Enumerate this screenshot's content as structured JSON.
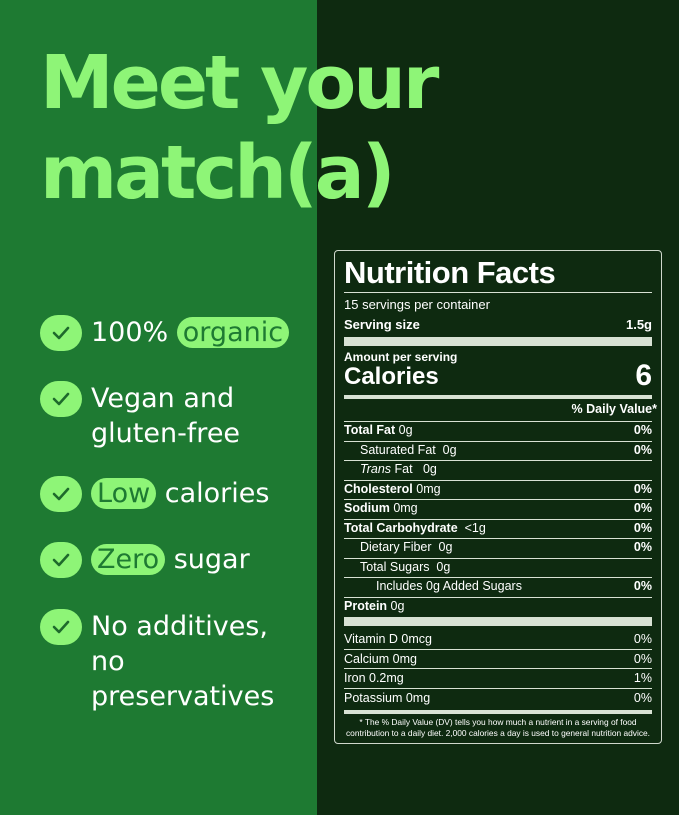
{
  "headline": {
    "line1": "Meet your",
    "line2": "match(a)"
  },
  "colors": {
    "left_bg": "#1e7a32",
    "right_bg": "#0e2a10",
    "accent": "#8ef577"
  },
  "features": [
    {
      "before": "100% ",
      "pill": "organic",
      "after": ""
    },
    {
      "before": "Vegan and gluten-free",
      "pill": "",
      "after": ""
    },
    {
      "before": "",
      "pill": "Low",
      "after": " calories"
    },
    {
      "before": "",
      "pill": "Zero",
      "after": " sugar"
    },
    {
      "before": "No additives, no preservatives",
      "pill": "",
      "after": ""
    }
  ],
  "nutrition": {
    "title": "Nutrition Facts",
    "servings": "15 servings per container",
    "serving_size_label": "Serving size",
    "serving_size_value": "1.5g",
    "amount_per_serving": "Amount per serving",
    "calories_label": "Calories",
    "calories_value": "6",
    "dv_header": "% Daily Value*",
    "rows": [
      {
        "bold": "Total Fat",
        "text": " 0g",
        "dv": "0%",
        "indent": 0,
        "dvbold": true
      },
      {
        "bold": "",
        "text": "Saturated Fat  0g",
        "dv": "0%",
        "indent": 1,
        "dvbold": true
      },
      {
        "bold": "",
        "italic": "Trans",
        "text": " Fat   0g",
        "dv": "",
        "indent": 1
      },
      {
        "bold": "Cholesterol",
        "text": " 0mg",
        "dv": "0%",
        "indent": 0,
        "dvbold": true
      },
      {
        "bold": "Sodium",
        "text": " 0mg",
        "dv": "0%",
        "indent": 0,
        "dvbold": true
      },
      {
        "bold": "Total Carbohydrate",
        "text": "  <1g",
        "dv": "0%",
        "indent": 0,
        "dvbold": true
      },
      {
        "bold": "",
        "text": "Dietary Fiber  0g",
        "dv": "0%",
        "indent": 1,
        "dvbold": true
      },
      {
        "bold": "",
        "text": "Total Sugars  0g",
        "dv": "",
        "indent": 1
      },
      {
        "bold": "",
        "text": "Includes 0g Added Sugars",
        "dv": "0%",
        "indent": 2,
        "dvbold": true
      },
      {
        "bold": "Protein",
        "text": " 0g",
        "dv": "",
        "indent": 0
      }
    ],
    "micros": [
      {
        "text": "Vitamin D  0mcg",
        "dv": "0%"
      },
      {
        "text": "Calcium  0mg",
        "dv": "0%"
      },
      {
        "text": "Iron 0.2mg",
        "dv": "1%"
      },
      {
        "text": "Potassium  0mg",
        "dv": "0%"
      }
    ],
    "footnote": "* The % Daily Value (DV) tells you how much a nutrient in a serving of food contribution to a daily diet. 2,000 calories a day is used to general nutrition advice."
  }
}
